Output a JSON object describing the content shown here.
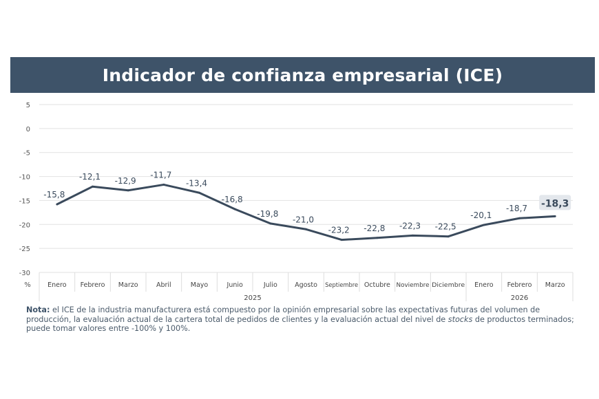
{
  "title": "Indicador de confianza empresarial (ICE)",
  "chart_data": {
    "type": "line",
    "title": "Indicador de confianza empresarial (ICE)",
    "ylabel": "%",
    "ylim": [
      -30,
      5
    ],
    "yticks": [
      5,
      0,
      -5,
      -10,
      -15,
      -20,
      -25,
      -30
    ],
    "grid": true,
    "categories": [
      "Enero",
      "Febrero",
      "Marzo",
      "Abril",
      "Mayo",
      "Junio",
      "Julio",
      "Agosto",
      "Septiembre",
      "Octubre",
      "Noviembre",
      "Diciembre",
      "Enero",
      "Febrero",
      "Marzo"
    ],
    "year_groups": [
      {
        "label": "2025",
        "count": 12
      },
      {
        "label": "2026",
        "count": 3
      }
    ],
    "values": [
      -15.8,
      -12.1,
      -12.9,
      -11.7,
      -13.4,
      -16.8,
      -19.8,
      -21.0,
      -23.2,
      -22.8,
      -22.3,
      -22.5,
      -20.1,
      -18.7,
      -18.3
    ],
    "data_labels": [
      "-15,8",
      "-12,1",
      "-12,9",
      "-11,7",
      "-13,4",
      "-16,8",
      "-19,8",
      "-21,0",
      "-23,2",
      "-22,8",
      "-22,3",
      "-22,5",
      "-20,1",
      "-18,7",
      "-18,3"
    ],
    "line_color": "#3a4a5c",
    "highlight_bg": "#e3e7ec"
  },
  "note": {
    "label": "Nota:",
    "text_before": " el ICE de la industria manufacturera está compuesto por la opinión empresarial sobre las expectativas futuras del volumen de producción, la evaluación actual de la cartera total de pedidos de clientes y la evaluación actual del nivel de ",
    "italic": "stocks",
    "text_after": " de productos terminados; puede tomar valores entre -100% y 100%."
  }
}
